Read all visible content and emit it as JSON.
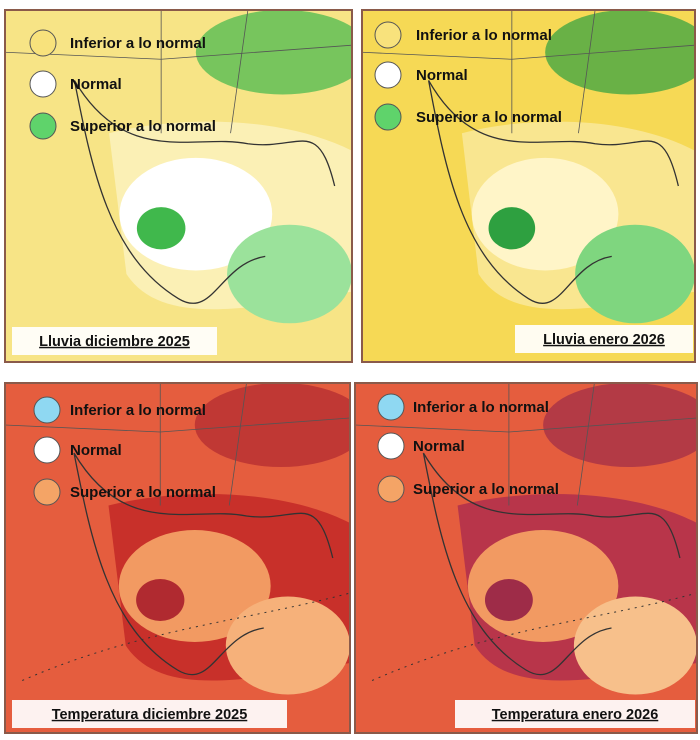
{
  "panels": [
    {
      "caption": "Lluvia diciembre 2025",
      "legend": [
        {
          "label": "Inferior a lo normal",
          "color": "#f8e27c"
        },
        {
          "label": "Normal",
          "color": "#ffffff"
        },
        {
          "label": "Superior a lo normal",
          "color": "#5fd36b"
        }
      ]
    },
    {
      "caption": "Lluvia enero 2026",
      "legend": [
        {
          "label": "Inferior a lo normal",
          "color": "#f8e27c"
        },
        {
          "label": "Normal",
          "color": "#ffffff"
        },
        {
          "label": "Superior a lo normal",
          "color": "#5fd36b"
        }
      ]
    },
    {
      "caption": "Temperatura diciembre 2025",
      "legend": [
        {
          "label": "Inferior a lo normal",
          "color": "#8fd8f2"
        },
        {
          "label": "Normal",
          "color": "#ffffff"
        },
        {
          "label": "Superior a lo normal",
          "color": "#f4a466"
        }
      ]
    },
    {
      "caption": "Temperatura enero 2026",
      "legend": [
        {
          "label": "Inferior a lo normal",
          "color": "#8fd8f2"
        },
        {
          "label": "Normal",
          "color": "#ffffff"
        },
        {
          "label": "Superior a lo normal",
          "color": "#f4a466"
        }
      ]
    }
  ]
}
